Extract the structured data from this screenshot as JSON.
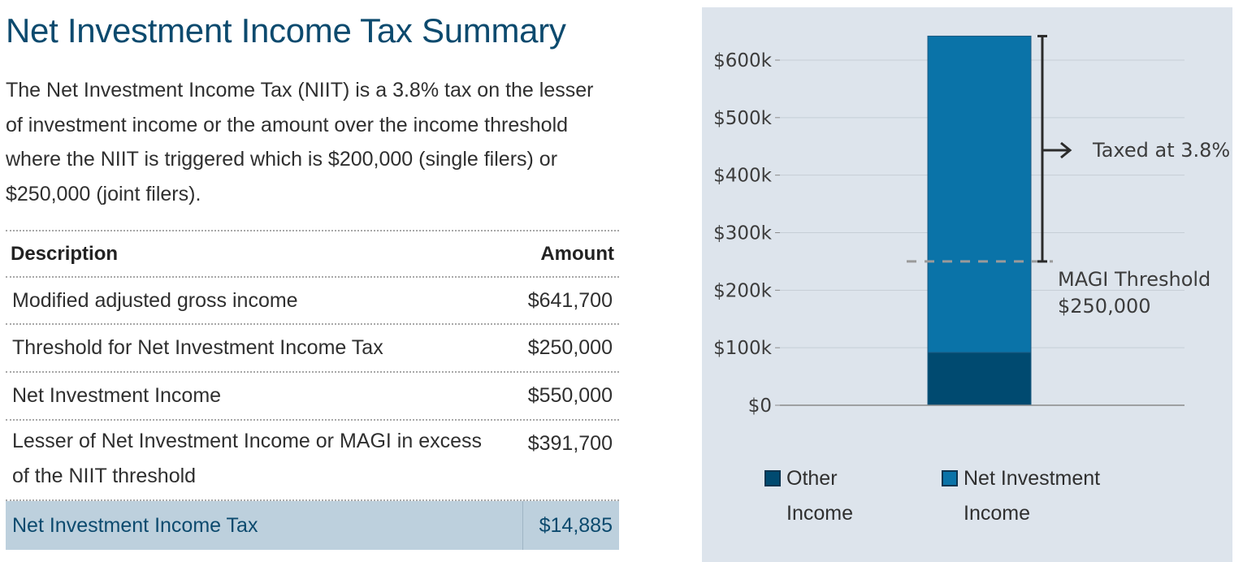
{
  "summary": {
    "title": "Net Investment Income Tax Summary",
    "intro": "The Net Investment Income Tax (NIIT) is a 3.8% tax on the lesser of investment income or the amount over the income threshold where the NIIT is triggered which is $200,000 (single filers) or $250,000 (joint filers).",
    "table": {
      "headers": {
        "description": "Description",
        "amount": "Amount"
      },
      "rows": [
        {
          "description": "Modified adjusted gross income",
          "amount": "$641,700"
        },
        {
          "description": "Threshold for Net Investment Income Tax",
          "amount": "$250,000"
        },
        {
          "description": "Net Investment Income",
          "amount": "$550,000"
        },
        {
          "description": "Lesser of Net Investment Income or MAGI in excess of the NIIT threshold",
          "amount": "$391,700"
        }
      ],
      "total": {
        "description": "Net Investment Income Tax",
        "amount": "$14,885"
      }
    }
  },
  "chart_data": {
    "type": "bar",
    "stacked": true,
    "categories": [
      ""
    ],
    "series": [
      {
        "name": "Other Income",
        "values": [
          91700
        ],
        "color": "#004a70"
      },
      {
        "name": "Net Investment Income",
        "values": [
          550000
        ],
        "color": "#0a73a8"
      }
    ],
    "ylim": [
      0,
      600000
    ],
    "yticks": [
      0,
      100000,
      200000,
      300000,
      400000,
      500000,
      600000
    ],
    "ytick_labels": [
      "$0",
      "$100k",
      "$200k",
      "$300k",
      "$400k",
      "$500k",
      "$600k"
    ],
    "grid": true,
    "legend_position": "bottom",
    "legend": [
      {
        "label_line1": "Other",
        "label_line2": "Income",
        "color": "#004a70"
      },
      {
        "label_line1": "Net Investment",
        "label_line2": "Income",
        "color": "#0a73a8"
      }
    ],
    "threshold": {
      "value": 250000,
      "label_line1": "MAGI Threshold",
      "label_line2": "$250,000"
    },
    "bracket": {
      "from": 250000,
      "to": 641700,
      "label": "Taxed at 3.8%"
    },
    "colors": {
      "panel_bg": "#dde4ec",
      "grid": "#c6ced6",
      "axis": "#8a8a8a",
      "dashed": "#9a9a9a",
      "bracket": "#2b2b2b"
    }
  }
}
